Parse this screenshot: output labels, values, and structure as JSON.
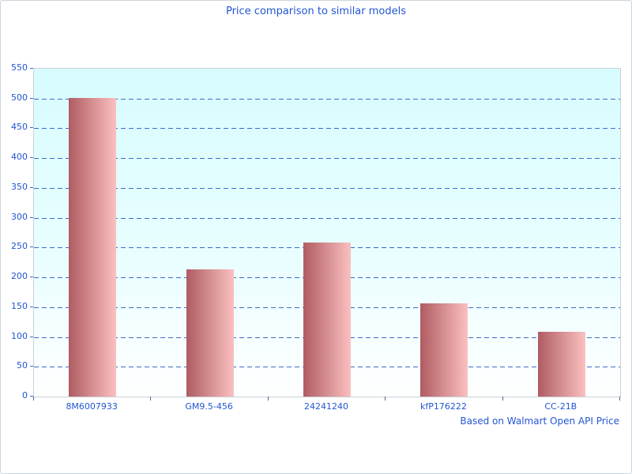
{
  "chart_data": {
    "type": "bar",
    "title": "Price comparison to similar models",
    "caption": "Based on Walmart Open API Price",
    "categories": [
      "8M6007933",
      "GM9.5-456",
      "24241240",
      "kfP176222",
      "CC-21B"
    ],
    "values": [
      501,
      213,
      259,
      156,
      109
    ],
    "xlabel": "",
    "ylabel": "",
    "ylim": [
      0,
      550
    ],
    "ytick_step": 50,
    "grid": "horizontal-dashed",
    "legend_position": "none",
    "colors": {
      "text_blue": "#2356d2",
      "gridline_blue": "#3c6bc9",
      "bar_gradient_left": "#af5c62",
      "bar_gradient_right": "#fbc0c0",
      "plot_bg_top": "#d7fcff",
      "plot_bg_bottom": "#ffffff",
      "plot_border": "#c9d2d6",
      "canvas_border": "#ccd4dc"
    }
  }
}
